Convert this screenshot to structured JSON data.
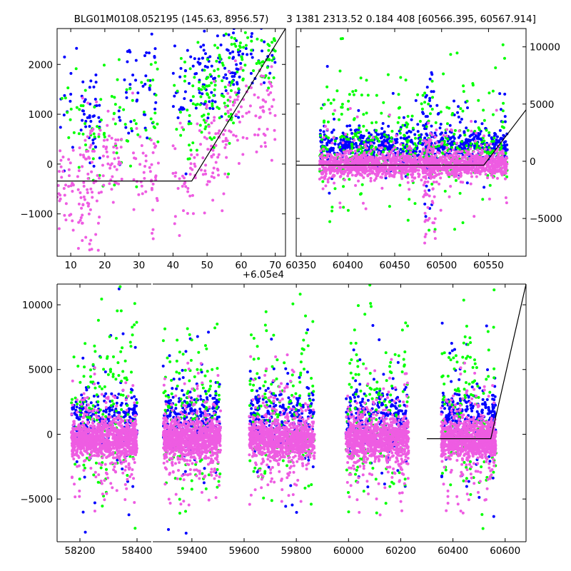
{
  "chart_data": [
    {
      "type": "scatter",
      "title": "BLG01M0108.052195 (145.63, 8956.57)",
      "xlim": [
        6,
        73
      ],
      "ylim": [
        -1850,
        2720
      ],
      "xticks": [
        10,
        20,
        30,
        40,
        50,
        60,
        70
      ],
      "yticks": [
        -1000,
        0,
        1000,
        2000
      ],
      "x_offset_label": "+6.05e4",
      "series": [
        {
          "color": "#0000ff",
          "clusters": [
            {
              "x0": 7,
              "x1": 12,
              "ymid": 1200,
              "ysd": 700,
              "n": 12
            },
            {
              "x0": 13,
              "x1": 19,
              "ymid": 1100,
              "ysd": 500,
              "n": 40
            },
            {
              "x0": 24,
              "x1": 35,
              "ymid": 1500,
              "ysd": 600,
              "n": 45
            },
            {
              "x0": 40,
              "x1": 47,
              "ymid": 1500,
              "ysd": 600,
              "n": 30
            },
            {
              "x0": 47,
              "x1": 60,
              "ymid": 1800,
              "ysd": 450,
              "n": 90
            },
            {
              "x0": 60,
              "x1": 70,
              "ymid": 2300,
              "ysd": 300,
              "n": 25
            }
          ]
        },
        {
          "color": "#00ff00",
          "clusters": [
            {
              "x0": 7,
              "x1": 12,
              "ymid": 700,
              "ysd": 600,
              "n": 10
            },
            {
              "x0": 12,
              "x1": 20,
              "ymid": 700,
              "ysd": 600,
              "n": 30
            },
            {
              "x0": 22,
              "x1": 36,
              "ymid": 1000,
              "ysd": 600,
              "n": 45
            },
            {
              "x0": 40,
              "x1": 48,
              "ymid": 1000,
              "ysd": 700,
              "n": 30
            },
            {
              "x0": 48,
              "x1": 58,
              "ymid": 1300,
              "ysd": 500,
              "n": 80
            },
            {
              "x0": 58,
              "x1": 70,
              "ymid": 2200,
              "ysd": 400,
              "n": 60
            }
          ]
        },
        {
          "color": "#ee5ce2",
          "clusters": [
            {
              "x0": 6,
              "x1": 11,
              "ymid": -400,
              "ysd": 450,
              "n": 35
            },
            {
              "x0": 12,
              "x1": 19,
              "ymid": -500,
              "ysd": 700,
              "n": 80
            },
            {
              "x0": 19,
              "x1": 25,
              "ymid": 100,
              "ysd": 400,
              "n": 45
            },
            {
              "x0": 28,
              "x1": 36,
              "ymid": -200,
              "ysd": 500,
              "n": 45
            },
            {
              "x0": 40,
              "x1": 46,
              "ymid": -300,
              "ysd": 500,
              "n": 30
            },
            {
              "x0": 46,
              "x1": 56,
              "ymid": 300,
              "ysd": 500,
              "n": 70
            },
            {
              "x0": 56,
              "x1": 70,
              "ymid": 1200,
              "ysd": 450,
              "n": 80
            }
          ]
        }
      ],
      "model_line": [
        [
          6,
          -340
        ],
        [
          45.5,
          -340
        ],
        [
          73,
          2720
        ]
      ]
    },
    {
      "type": "scatter",
      "title": "3 1381 2313.52 0.184 408 [60566.395, 60567.914]",
      "xlim": [
        60345,
        60590
      ],
      "ylim": [
        -8300,
        11600
      ],
      "xticks": [
        60350,
        60400,
        60450,
        60500,
        60550
      ],
      "yticks": [
        -5000,
        0,
        5000,
        10000
      ],
      "y_axis_side": "right",
      "series": [
        {
          "color": "#0000ff",
          "clusters": [
            {
              "x0": 60370,
              "x1": 60570,
              "ymid": 1300,
              "ysd": 700,
              "n": 700
            },
            {
              "x0": 60370,
              "x1": 60570,
              "ymid": 2000,
              "ysd": 2500,
              "n": 90
            },
            {
              "x0": 60480,
              "x1": 60490,
              "ymid": 2000,
              "ysd": 4000,
              "n": 40
            }
          ]
        },
        {
          "color": "#00ff00",
          "clusters": [
            {
              "x0": 60370,
              "x1": 60570,
              "ymid": 2000,
              "ysd": 3000,
              "n": 260
            },
            {
              "x0": 60370,
              "x1": 60570,
              "ymid": 700,
              "ysd": 800,
              "n": 200
            }
          ]
        },
        {
          "color": "#ee5ce2",
          "clusters": [
            {
              "x0": 60370,
              "x1": 60570,
              "ymid": -300,
              "ysd": 500,
              "n": 1400
            },
            {
              "x0": 60370,
              "x1": 60570,
              "ymid": 0,
              "ysd": 2000,
              "n": 150
            },
            {
              "x0": 60480,
              "x1": 60495,
              "ymid": -1500,
              "ysd": 2500,
              "n": 80
            }
          ]
        }
      ],
      "model_line": [
        [
          60345,
          -340
        ],
        [
          60545,
          -340
        ],
        [
          60590,
          4500
        ]
      ]
    },
    {
      "type": "scatter",
      "title": "",
      "ylim": [
        -8300,
        11600
      ],
      "yticks": [
        -5000,
        0,
        5000,
        10000
      ],
      "segments": [
        {
          "xlim": [
            58120,
            58450
          ],
          "xticks": [
            58200,
            58400
          ],
          "seasons": [
            [
              58170,
              58400
            ]
          ]
        },
        {
          "xlim": [
            59250,
            60680
          ],
          "xticks": [
            59400,
            59600,
            59800,
            60000,
            60200,
            60400,
            60600
          ],
          "seasons": [
            [
              59290,
              59510
            ],
            [
              59620,
              59870
            ],
            [
              59990,
              60230
            ],
            [
              60355,
              60565
            ]
          ]
        }
      ],
      "series": [
        {
          "color": "#0000ff",
          "season_mid": 1400,
          "season_sd": 900,
          "wide_sd": 3500,
          "n": 1300
        },
        {
          "color": "#00ff00",
          "season_mid": 2000,
          "season_sd": 3500,
          "wide_sd": 3500,
          "n": 750
        },
        {
          "color": "#ee5ce2",
          "season_mid": -400,
          "season_sd": 700,
          "wide_sd": 2200,
          "n": 5200
        }
      ],
      "model_line": [
        [
          60300,
          -340
        ],
        [
          60545,
          -340
        ],
        [
          60680,
          11600
        ]
      ]
    }
  ]
}
